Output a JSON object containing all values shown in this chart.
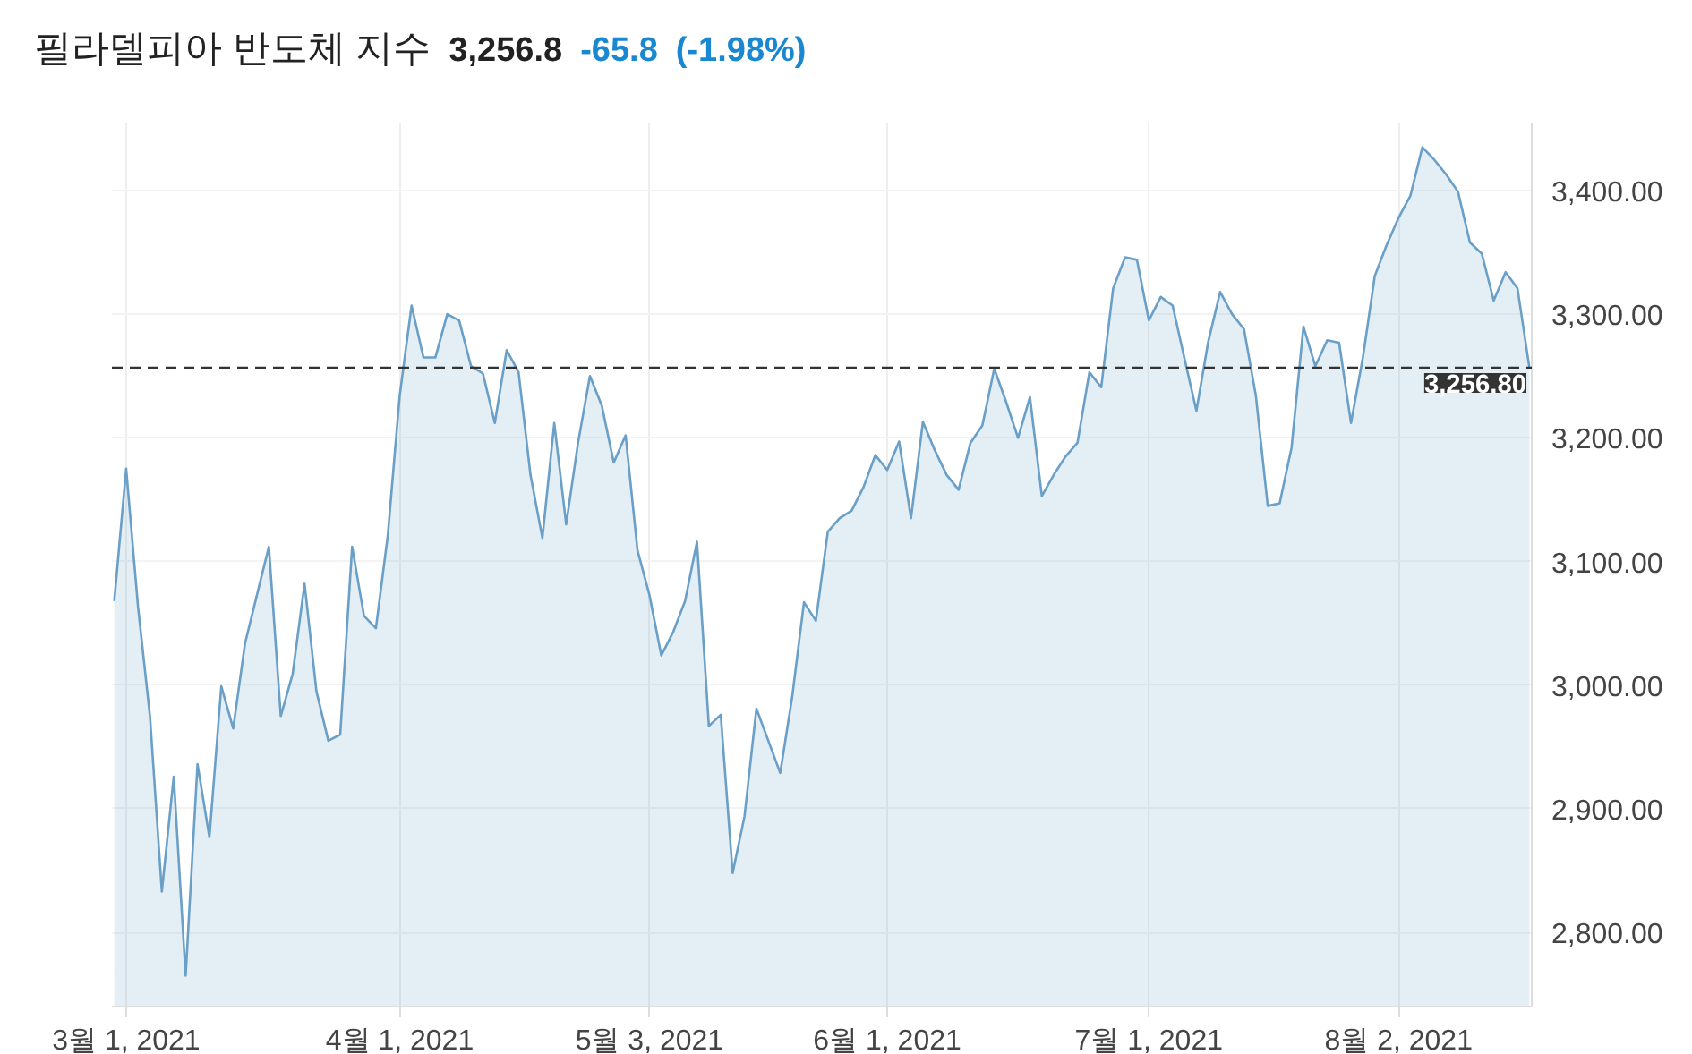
{
  "chart_data": {
    "type": "area",
    "title": "필라델피아 반도체 지수",
    "annotations": [
      "3,256.8",
      "-65.8",
      "(-1.98%)"
    ],
    "categories": [
      null,
      "3월 1, 2021",
      null,
      null,
      null,
      null,
      null,
      null,
      null,
      null,
      null,
      null,
      null,
      null,
      null,
      null,
      null,
      null,
      null,
      null,
      null,
      null,
      null,
      null,
      "4월 1, 2021",
      null,
      null,
      null,
      null,
      null,
      null,
      null,
      null,
      null,
      null,
      null,
      null,
      null,
      null,
      null,
      null,
      null,
      null,
      null,
      null,
      "5월 3, 2021",
      null,
      null,
      null,
      null,
      null,
      null,
      null,
      null,
      null,
      null,
      null,
      null,
      null,
      null,
      null,
      null,
      null,
      null,
      null,
      "6월 1, 2021",
      null,
      null,
      null,
      null,
      null,
      null,
      null,
      null,
      null,
      null,
      null,
      null,
      null,
      null,
      null,
      null,
      null,
      null,
      null,
      null,
      null,
      "7월 1, 2021",
      null,
      null,
      null,
      null,
      null,
      null,
      null,
      null,
      null,
      null,
      null,
      null,
      null,
      null,
      null,
      null,
      null,
      null,
      null,
      null,
      "8월 2, 2021",
      null,
      null,
      null,
      null,
      null,
      null,
      null,
      null,
      null,
      null,
      null
    ],
    "series": [
      {
        "color": "#6a9fc8",
        "values": [
          3068,
          3175,
          3063,
          2975,
          2833,
          2926,
          2765,
          2936,
          2877,
          2999,
          2965,
          3034,
          3073,
          3112,
          2975,
          3009,
          3082,
          2995,
          2955,
          2960,
          3112,
          3056,
          3046,
          3121,
          3234,
          3307,
          3265,
          3265,
          3300,
          3295,
          3258,
          3252,
          3212,
          3271,
          3253,
          3170,
          3119,
          3212,
          3130,
          3196,
          3250,
          3226,
          3180,
          3202,
          3109,
          3073,
          3024,
          3043,
          3068,
          3116,
          2967,
          2976,
          2848,
          2894,
          2981,
          2955,
          2929,
          2990,
          3067,
          3052,
          3124,
          3135,
          3141,
          3160,
          3186,
          3174,
          3197,
          3135,
          3213,
          3190,
          3170,
          3158,
          3196,
          3210,
          3256,
          3229,
          3200,
          3233,
          3153,
          3170,
          3185,
          3196,
          3253,
          3241,
          3321,
          3346,
          3344,
          3295,
          3314,
          3307,
          3264,
          3222,
          3278,
          3318,
          3300,
          3288,
          3234,
          3145,
          3147,
          3192,
          3290,
          3258,
          3279,
          3277,
          3212,
          3265,
          3331,
          3356,
          3378,
          3396,
          3435,
          3425,
          3413,
          3399,
          3358,
          3349,
          3311,
          3334,
          3321,
          3256.8
        ]
      }
    ],
    "ylim": [
      2740,
      3455
    ],
    "yticks": [
      {
        "value": 2800,
        "label": "2,800.00"
      },
      {
        "value": 2900,
        "label": "2,900.00"
      },
      {
        "value": 3000,
        "label": "3,000.00"
      },
      {
        "value": 3100,
        "label": "3,100.00"
      },
      {
        "value": 3200,
        "label": "3,200.00"
      },
      {
        "value": 3300,
        "label": "3,300.00"
      },
      {
        "value": 3400,
        "label": "3,400.00"
      }
    ],
    "ref_lines": [
      {
        "axis": "y",
        "value": 3256.8,
        "label": "3,256.80",
        "color": "#333333",
        "line_style": "dashed"
      }
    ],
    "grid": true
  }
}
